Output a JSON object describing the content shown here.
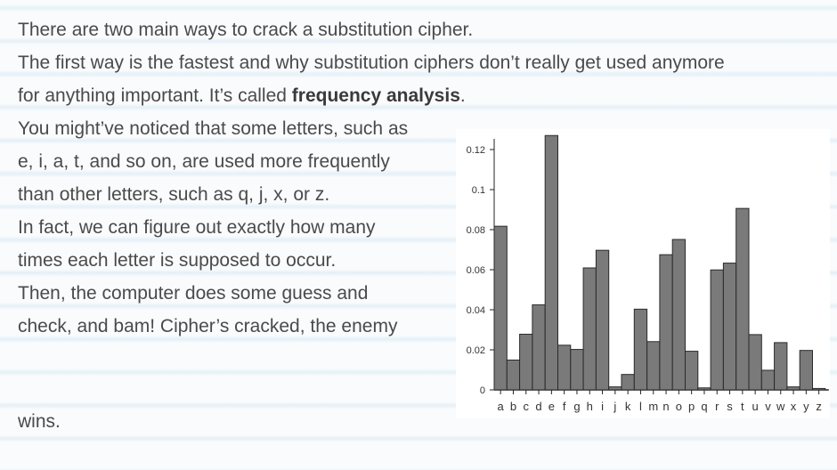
{
  "text": {
    "line1": "There are two main ways to crack a substitution cipher.",
    "line2": "The first way is the fastest and why substitution ciphers don’t really get used anymore",
    "line3_pre": "for anything important. It’s called ",
    "line3_bold": "frequency analysis",
    "line3_post": ".",
    "line4": "You might’ve noticed that some letters, such as",
    "line5": "e, i, a, t, and so on, are used more frequently",
    "line6": "than other letters, such as q, j, x, or z.",
    "line7": "In fact, we can figure out exactly how many",
    "line8": "times each letter is supposed to occur.",
    "line9": "Then, the computer does some guess and",
    "line10": "check, and bam! Cipher’s cracked, the enemy",
    "line11": "wins."
  },
  "chart_data": {
    "type": "bar",
    "categories": [
      "a",
      "b",
      "c",
      "d",
      "e",
      "f",
      "g",
      "h",
      "i",
      "j",
      "k",
      "l",
      "m",
      "n",
      "o",
      "p",
      "q",
      "r",
      "s",
      "t",
      "u",
      "v",
      "w",
      "x",
      "y",
      "z"
    ],
    "values": [
      0.0817,
      0.0149,
      0.0278,
      0.0425,
      0.127,
      0.0223,
      0.0202,
      0.0609,
      0.0697,
      0.0015,
      0.0077,
      0.0403,
      0.0241,
      0.0675,
      0.0751,
      0.0193,
      0.001,
      0.0599,
      0.0633,
      0.0906,
      0.0276,
      0.0098,
      0.0236,
      0.0015,
      0.0197,
      0.0007
    ],
    "yticks": [
      "0",
      "0.02",
      "0.04",
      "0.06",
      "0.08",
      "0.1",
      "0.12"
    ],
    "ylim": [
      0,
      0.127
    ],
    "grid": false,
    "bar_color": "#7a7a7a"
  }
}
